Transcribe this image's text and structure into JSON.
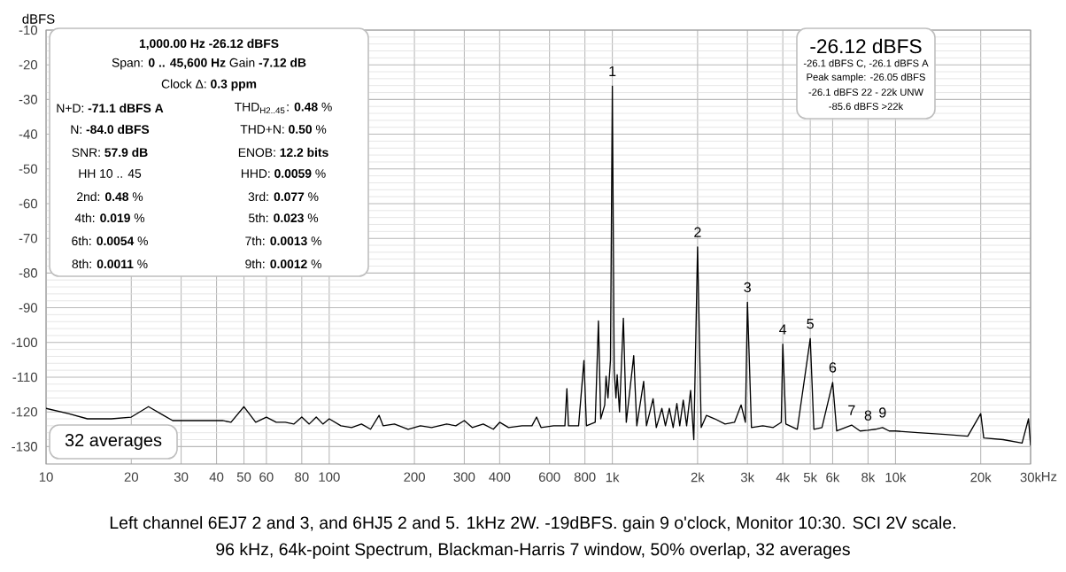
{
  "chart_data": {
    "type": "line",
    "log": "x",
    "grid": true,
    "ylabel": "dBFS",
    "xlim": [
      10,
      30000
    ],
    "ylim": [
      -135,
      -10
    ],
    "xticks": [
      10,
      20,
      30,
      40,
      50,
      60,
      80,
      100,
      200,
      300,
      400,
      600,
      800,
      {
        "value": 1000,
        "label": "1k"
      },
      {
        "value": 2000,
        "label": "2k"
      },
      {
        "value": 3000,
        "label": "3k"
      },
      {
        "value": 4000,
        "label": "4k"
      },
      {
        "value": 5000,
        "label": "5k"
      },
      {
        "value": 6000,
        "label": "6k"
      },
      {
        "value": 8000,
        "label": "8k"
      },
      {
        "value": 10000,
        "label": "10k"
      },
      {
        "value": 20000,
        "label": "20k"
      },
      {
        "value": 30000,
        "label": "30k"
      }
    ],
    "xlabel": "Hz",
    "yticks": [
      -10,
      -20,
      -30,
      -40,
      -50,
      -60,
      -70,
      -80,
      -90,
      -100,
      -110,
      -120,
      -130
    ],
    "series": [
      {
        "color": "#000000",
        "x": [
          10,
          12,
          14,
          17,
          20,
          23,
          26,
          28,
          35,
          42,
          45,
          50,
          55,
          60,
          65,
          70,
          75,
          80,
          85,
          90,
          95,
          100,
          110,
          120,
          130,
          140,
          150,
          155,
          170,
          190,
          210,
          230,
          260,
          280,
          300,
          320,
          350,
          380,
          400,
          430,
          480,
          520,
          540,
          560,
          620,
          680,
          691,
          700,
          760,
          794,
          810,
          870,
          893,
          910,
          940,
          950,
          965,
          985,
          1000,
          1015,
          1030,
          1040,
          1060,
          1094,
          1120,
          1190,
          1220,
          1290,
          1320,
          1393,
          1430,
          1496,
          1540,
          1590,
          1640,
          1690,
          1730,
          1780,
          1830,
          1890,
          1940,
          2000,
          2060,
          2150,
          2300,
          2500,
          2700,
          2850,
          2950,
          3000,
          3100,
          3400,
          3700,
          3950,
          4000,
          4100,
          4500,
          5000,
          5150,
          5500,
          6000,
          6200,
          7000,
          7500,
          8000,
          8500,
          9000,
          9500,
          10000,
          12000,
          15000,
          18000,
          20000,
          20500,
          24000,
          28000,
          29500,
          30000
        ],
        "values": [
          -119,
          -120.5,
          -122,
          -122,
          -121.5,
          -118.5,
          -121,
          -122.5,
          -122.5,
          -122.5,
          -123,
          -118.5,
          -123,
          -121.5,
          -123,
          -123,
          -123.5,
          -121.5,
          -123.5,
          -121.5,
          -123.5,
          -122,
          -124,
          -124.5,
          -123.5,
          -125,
          -121,
          -124,
          -123.5,
          -125,
          -124,
          -124.5,
          -123.5,
          -124,
          -122.5,
          -124.5,
          -123.5,
          -125,
          -123,
          -124.5,
          -124,
          -124,
          -121.5,
          -124.5,
          -124,
          -124,
          -113.3,
          -124,
          -124,
          -105.2,
          -124,
          -123,
          -93.8,
          -122,
          -118,
          -109.7,
          -116,
          -105,
          -26.1,
          -108,
          -116,
          -109.3,
          -120,
          -93,
          -123,
          -103.8,
          -124,
          -111.2,
          -124,
          -116.2,
          -124.5,
          -119,
          -124,
          -119,
          -124.5,
          -117.6,
          -124,
          -116.6,
          -124,
          -113.8,
          -128,
          -72.5,
          -124.5,
          -121,
          -122,
          -123.5,
          -123,
          -118,
          -123,
          -88.4,
          -124.5,
          -124,
          -124.5,
          -123,
          -100.5,
          -123.5,
          -125,
          -98.9,
          -125,
          -124.5,
          -111.5,
          -125.5,
          -123.8,
          -125.5,
          -125.3,
          -125,
          -124.5,
          -125.5,
          -125.5,
          -126,
          -126.5,
          -127,
          -120.5,
          -127.5,
          -128,
          -129,
          -122,
          -129.6
        ]
      }
    ],
    "annotations": [
      "**1,000.00 Hz  -26.12 dBFS**",
      "Span: **0 .. 45,600 Hz**  Gain **-7.12 dB**",
      "Clock Δ: **0.3 ppm**",
      "N+D: **-71.1 dBFS A**",
      "THD$_{H2..45}$: **0.48** %",
      "N: **-84.0 dBFS**",
      "THD+N: **0.50** %",
      "SNR: **57.9 dB**",
      "ENOB: **12.2 bits**",
      "HH 10 .. 45",
      "HHD: **0.0059** %",
      "2nd: **0.48** %",
      "3rd: **0.077** %",
      "4th: **0.019** %",
      "5th: **0.023** %",
      "6th: **0.0054** %",
      "7th: **0.0013** %",
      "8th: **0.0011** %",
      "9th: **0.0012** %",
      "-26.12 dBFS",
      "-26.1 dBFS C, -26.1 dBFS A",
      "Peak sample: -26.05 dBFS",
      "-26.1 dBFS 22 - 22k UNW",
      "-85.6 dBFS >22k",
      "32 averages",
      "Left channel 6EJ7 2 and 3, and 6HJ5 2 and 5. 1kHz 2W. -19dBFS. gain 9 o'clock, Monitor 10:30. SCI 2V scale.",
      "96 kHz, 64k-point Spectrum, Blackman-Harris 7 window, 50% overlap, 32 averages",
      {
        "text": "1",
        "x": 1000,
        "y": -26.1
      },
      {
        "text": "2",
        "x": 2000,
        "y": -72.5
      },
      {
        "text": "3",
        "x": 3000,
        "y": -88.4
      },
      {
        "text": "4",
        "x": 4000,
        "y": -100.5
      },
      {
        "text": "5",
        "x": 5000,
        "y": -98.9
      },
      {
        "text": "6",
        "x": 6000,
        "y": -111.5
      },
      {
        "text": "7",
        "x": 7000,
        "y": -123.8
      },
      {
        "text": "8",
        "x": 8000,
        "y": -125.3
      },
      {
        "text": "9",
        "x": 9000,
        "y": -124.5
      }
    ]
  }
}
